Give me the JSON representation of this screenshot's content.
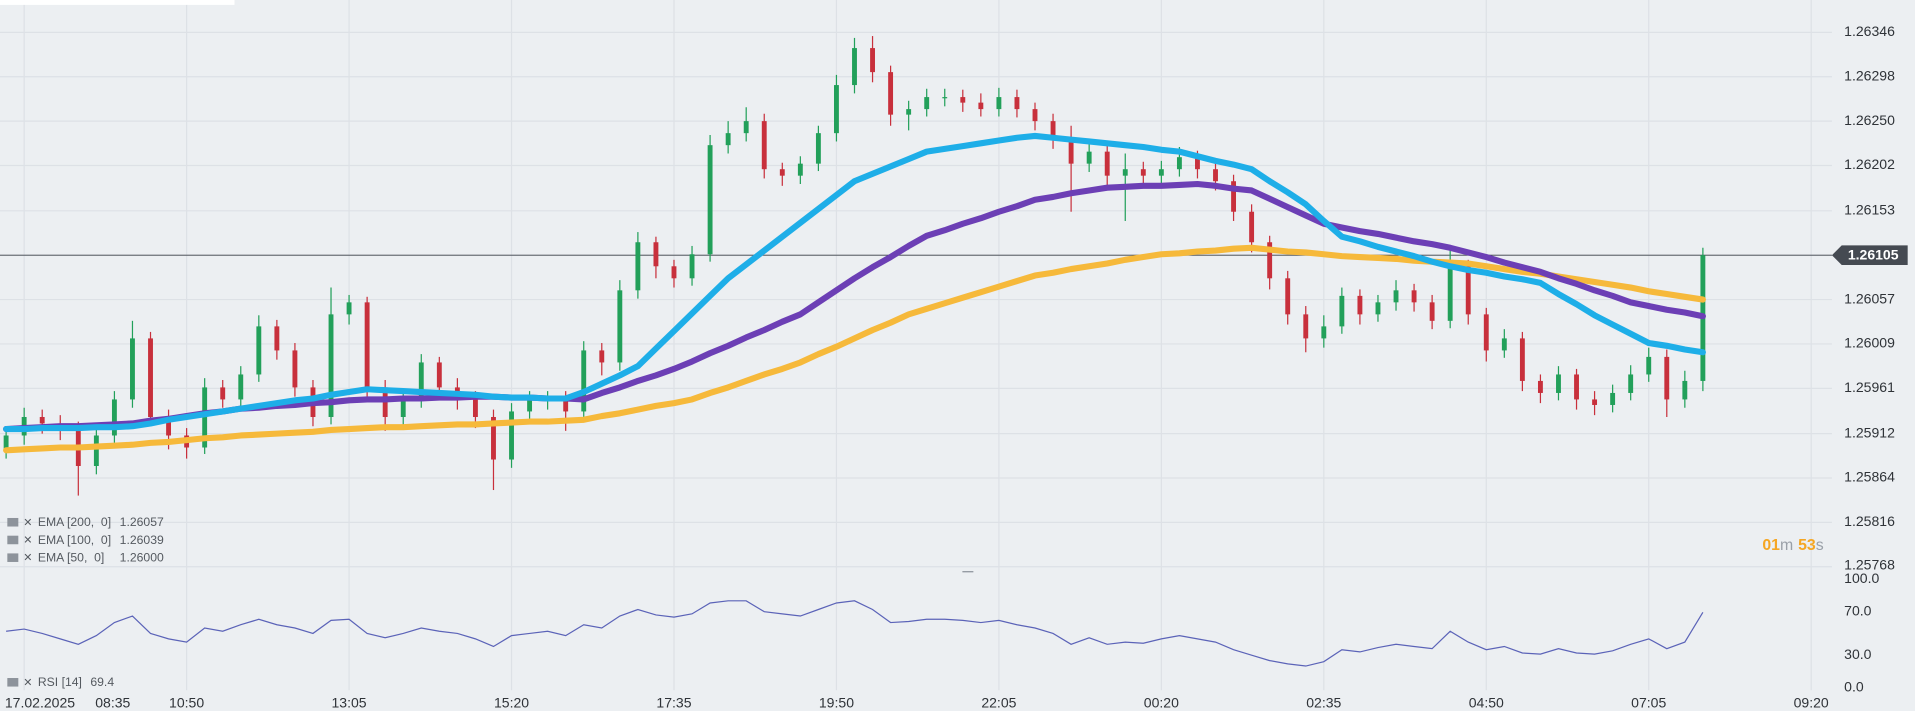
{
  "chart_data": {
    "type": "candlestick",
    "date": "17.02.2025",
    "categories": [
      null,
      "08:35",
      null,
      null,
      null,
      null,
      null,
      null,
      null,
      null,
      "10:50",
      null,
      null,
      null,
      null,
      null,
      null,
      null,
      null,
      "13:05",
      null,
      null,
      null,
      null,
      null,
      null,
      null,
      null,
      "15:20",
      null,
      null,
      null,
      null,
      null,
      null,
      null,
      null,
      "17:35",
      null,
      null,
      null,
      null,
      null,
      null,
      null,
      null,
      "19:50",
      null,
      null,
      null,
      null,
      null,
      null,
      null,
      null,
      "22:05",
      null,
      null,
      null,
      null,
      null,
      null,
      null,
      null,
      "00:20",
      null,
      null,
      null,
      null,
      null,
      null,
      null,
      null,
      "02:35",
      null,
      null,
      null,
      null,
      null,
      null,
      null,
      null,
      "04:50",
      null,
      null,
      null,
      null,
      null,
      null,
      null,
      null,
      "07:05",
      null,
      null,
      null,
      null,
      null,
      null,
      null,
      null,
      "09:20"
    ],
    "ohlc": [
      [
        1.25895,
        1.2592,
        1.25885,
        1.2591
      ],
      [
        1.2591,
        1.2594,
        1.259,
        1.2593
      ],
      [
        1.2593,
        1.25938,
        1.25912,
        1.25923
      ],
      [
        1.25923,
        1.25932,
        1.25905,
        1.25917
      ],
      [
        1.25917,
        1.25925,
        1.25845,
        1.25877
      ],
      [
        1.25877,
        1.25918,
        1.25868,
        1.2591
      ],
      [
        1.2591,
        1.25958,
        1.25902,
        1.25949
      ],
      [
        1.25949,
        1.26034,
        1.2594,
        1.26015
      ],
      [
        1.26015,
        1.26022,
        1.2592,
        1.2593
      ],
      [
        1.2593,
        1.25938,
        1.25895,
        1.2591
      ],
      [
        1.2591,
        1.25918,
        1.25885,
        1.25897
      ],
      [
        1.25897,
        1.25972,
        1.2589,
        1.25962
      ],
      [
        1.25962,
        1.2597,
        1.2594,
        1.25949
      ],
      [
        1.25949,
        1.25985,
        1.2594,
        1.25976
      ],
      [
        1.25976,
        1.2604,
        1.25968,
        1.26028
      ],
      [
        1.26028,
        1.26035,
        1.25992,
        1.26002
      ],
      [
        1.26002,
        1.2601,
        1.25952,
        1.25962
      ],
      [
        1.25962,
        1.2597,
        1.2592,
        1.2593
      ],
      [
        1.2593,
        1.2607,
        1.25922,
        1.26041
      ],
      [
        1.26041,
        1.26062,
        1.2603,
        1.26054
      ],
      [
        1.26054,
        1.2606,
        1.2595,
        1.25962
      ],
      [
        1.25962,
        1.2597,
        1.25915,
        1.2593
      ],
      [
        1.2593,
        1.2596,
        1.2592,
        1.25949
      ],
      [
        1.25949,
        1.25998,
        1.2594,
        1.25989
      ],
      [
        1.25989,
        1.25995,
        1.25952,
        1.25962
      ],
      [
        1.25962,
        1.25972,
        1.25938,
        1.25949
      ],
      [
        1.25949,
        1.25958,
        1.25918,
        1.2593
      ],
      [
        1.2593,
        1.25938,
        1.25851,
        1.25884
      ],
      [
        1.25884,
        1.25945,
        1.25875,
        1.25936
      ],
      [
        1.25936,
        1.25958,
        1.25928,
        1.25949
      ],
      [
        1.25949,
        1.25958,
        1.25938,
        1.25949
      ],
      [
        1.25949,
        1.25958,
        1.25915,
        1.25936
      ],
      [
        1.25936,
        1.26012,
        1.25928,
        1.26002
      ],
      [
        1.26002,
        1.2601,
        1.25975,
        1.25989
      ],
      [
        1.25989,
        1.26078,
        1.2598,
        1.26067
      ],
      [
        1.26067,
        1.2613,
        1.26058,
        1.26119
      ],
      [
        1.26119,
        1.26125,
        1.2608,
        1.26093
      ],
      [
        1.26093,
        1.261,
        1.2607,
        1.2608
      ],
      [
        1.2608,
        1.26115,
        1.26072,
        1.26106
      ],
      [
        1.26106,
        1.26235,
        1.26098,
        1.26224
      ],
      [
        1.26224,
        1.2625,
        1.26215,
        1.26237
      ],
      [
        1.26237,
        1.26265,
        1.26228,
        1.2625
      ],
      [
        1.2625,
        1.26258,
        1.26188,
        1.26198
      ],
      [
        1.26198,
        1.26205,
        1.2618,
        1.26191
      ],
      [
        1.26191,
        1.26212,
        1.26182,
        1.26204
      ],
      [
        1.26204,
        1.26245,
        1.26196,
        1.26237
      ],
      [
        1.26237,
        1.263,
        1.26228,
        1.26289
      ],
      [
        1.26289,
        1.2634,
        1.2628,
        1.26329
      ],
      [
        1.26329,
        1.26342,
        1.26292,
        1.26303
      ],
      [
        1.26303,
        1.2631,
        1.26245,
        1.26257
      ],
      [
        1.26257,
        1.26272,
        1.2624,
        1.26263
      ],
      [
        1.26263,
        1.26285,
        1.26255,
        1.26276
      ],
      [
        1.26276,
        1.26285,
        1.26266,
        1.26276
      ],
      [
        1.26276,
        1.26284,
        1.2626,
        1.2627
      ],
      [
        1.2627,
        1.2628,
        1.26255,
        1.26263
      ],
      [
        1.26263,
        1.26286,
        1.26255,
        1.26276
      ],
      [
        1.26276,
        1.26284,
        1.26254,
        1.26263
      ],
      [
        1.26263,
        1.2627,
        1.2624,
        1.2625
      ],
      [
        1.2625,
        1.26258,
        1.2622,
        1.26231
      ],
      [
        1.26231,
        1.26245,
        1.26152,
        1.26204
      ],
      [
        1.26204,
        1.26228,
        1.26195,
        1.26217
      ],
      [
        1.26217,
        1.26225,
        1.2618,
        1.26191
      ],
      [
        1.26191,
        1.26215,
        1.26142,
        1.26198
      ],
      [
        1.26198,
        1.26206,
        1.2618,
        1.26191
      ],
      [
        1.26191,
        1.26207,
        1.26183,
        1.26198
      ],
      [
        1.26198,
        1.26222,
        1.2619,
        1.26211
      ],
      [
        1.26211,
        1.26218,
        1.26188,
        1.26198
      ],
      [
        1.26198,
        1.26205,
        1.26175,
        1.26185
      ],
      [
        1.26185,
        1.26192,
        1.26142,
        1.26152
      ],
      [
        1.26152,
        1.2616,
        1.26108,
        1.26119
      ],
      [
        1.26119,
        1.26126,
        1.26068,
        1.2608
      ],
      [
        1.2608,
        1.26088,
        1.2603,
        1.26041
      ],
      [
        1.26041,
        1.2605,
        1.26,
        1.26015
      ],
      [
        1.26015,
        1.2604,
        1.26005,
        1.26028
      ],
      [
        1.26028,
        1.2607,
        1.2602,
        1.26061
      ],
      [
        1.26061,
        1.26068,
        1.2603,
        1.26041
      ],
      [
        1.26041,
        1.26062,
        1.26033,
        1.26054
      ],
      [
        1.26054,
        1.26078,
        1.26045,
        1.26067
      ],
      [
        1.26067,
        1.26074,
        1.26044,
        1.26054
      ],
      [
        1.26054,
        1.26062,
        1.26025,
        1.26034
      ],
      [
        1.26034,
        1.26113,
        1.26026,
        1.26093
      ],
      [
        1.26093,
        1.261,
        1.2603,
        1.26041
      ],
      [
        1.26041,
        1.26048,
        1.2599,
        1.26002
      ],
      [
        1.26002,
        1.26025,
        1.25994,
        1.26015
      ],
      [
        1.26015,
        1.26022,
        1.25958,
        1.25969
      ],
      [
        1.25969,
        1.25976,
        1.25945,
        1.25956
      ],
      [
        1.25956,
        1.25985,
        1.25948,
        1.25976
      ],
      [
        1.25976,
        1.25982,
        1.25938,
        1.25949
      ],
      [
        1.25949,
        1.25958,
        1.25932,
        1.25943
      ],
      [
        1.25943,
        1.25965,
        1.25935,
        1.25956
      ],
      [
        1.25956,
        1.25986,
        1.25948,
        1.25976
      ],
      [
        1.25976,
        1.26005,
        1.25968,
        1.25995
      ],
      [
        1.25995,
        1.26003,
        1.2593,
        1.25949
      ],
      [
        1.25949,
        1.2598,
        1.2594,
        1.25969
      ],
      [
        1.25969,
        1.26113,
        1.25958,
        1.26105
      ],
      null,
      null,
      null,
      null,
      null,
      null
    ],
    "up_color": "#22a05a",
    "down_color": "#c8303c",
    "series": [
      {
        "name": "EMA [200,  0]",
        "last_value": {
          "value": 1.26057,
          "label": "1.26057"
        },
        "color": "#f6b93b",
        "values": [
          1.25894,
          1.25895,
          1.25896,
          1.25897,
          1.25897,
          1.25898,
          1.25899,
          1.259,
          1.25902,
          1.25903,
          1.25905,
          1.25907,
          1.25908,
          1.2591,
          1.25911,
          1.25912,
          1.25913,
          1.25914,
          1.25916,
          1.25917,
          1.25918,
          1.25919,
          1.25919,
          1.2592,
          1.25921,
          1.25922,
          1.25922,
          1.25923,
          1.25924,
          1.25925,
          1.25925,
          1.25926,
          1.25927,
          1.25931,
          1.25934,
          1.25938,
          1.25942,
          1.25945,
          1.25949,
          1.25956,
          1.25962,
          1.25969,
          1.25976,
          1.25982,
          1.25989,
          1.25998,
          1.26006,
          1.26015,
          1.26024,
          1.26032,
          1.26041,
          1.26047,
          1.26053,
          1.26059,
          1.26065,
          1.26071,
          1.26077,
          1.26083,
          1.26086,
          1.2609,
          1.26093,
          1.26096,
          1.261,
          1.26103,
          1.26106,
          1.26107,
          1.26109,
          1.2611,
          1.26112,
          1.26113,
          1.26111,
          1.26109,
          1.26108,
          1.26106,
          1.26104,
          1.26103,
          1.26102,
          1.26101,
          1.26099,
          1.26098,
          1.26097,
          1.26096,
          1.26093,
          1.2609,
          1.26087,
          1.26085,
          1.26082,
          1.26079,
          1.26076,
          1.26073,
          1.2607,
          1.26066,
          1.26063,
          1.2606,
          1.26057,
          null,
          null,
          null,
          null,
          null,
          null
        ]
      },
      {
        "name": "EMA [100,  0]",
        "last_value": {
          "value": 1.26039,
          "label": "1.26039"
        },
        "color": "#6c3fb5",
        "values": [
          1.25917,
          1.25918,
          1.25919,
          1.2592,
          1.2592,
          1.25921,
          1.25922,
          1.25923,
          1.25926,
          1.25928,
          1.25931,
          1.25934,
          1.25936,
          1.25939,
          1.2594,
          1.25942,
          1.25943,
          1.25945,
          1.25946,
          1.25948,
          1.25949,
          1.25949,
          1.2595,
          1.2595,
          1.25951,
          1.25951,
          1.25952,
          1.25952,
          1.25951,
          1.25951,
          1.2595,
          1.2595,
          1.25949,
          1.25956,
          1.25962,
          1.25969,
          1.25975,
          1.25982,
          1.2599,
          1.25999,
          1.26007,
          1.26016,
          1.26024,
          1.26033,
          1.26041,
          1.26054,
          1.26067,
          1.2608,
          1.26092,
          1.26103,
          1.26115,
          1.26126,
          1.26132,
          1.26139,
          1.26145,
          1.26152,
          1.26158,
          1.26165,
          1.26168,
          1.26172,
          1.26175,
          1.26178,
          1.26179,
          1.2618,
          1.2618,
          1.26181,
          1.26182,
          1.2618,
          1.26177,
          1.26175,
          1.26166,
          1.26157,
          1.26148,
          1.26139,
          1.26135,
          1.26131,
          1.26128,
          1.26124,
          1.2612,
          1.26117,
          1.26113,
          1.26108,
          1.26103,
          1.26097,
          1.26092,
          1.26087,
          1.2608,
          1.26074,
          1.26067,
          1.26061,
          1.26054,
          1.2605,
          1.26046,
          1.26043,
          1.26039,
          null,
          null,
          null,
          null,
          null,
          null
        ]
      },
      {
        "name": "EMA [50,  0]",
        "last_value": {
          "value": 1.26,
          "label": "1.26000"
        },
        "color": "#1eaee8",
        "values": [
          1.25917,
          1.25917,
          1.25918,
          1.25918,
          1.25918,
          1.25919,
          1.25919,
          1.2592,
          1.25923,
          1.25927,
          1.2593,
          1.25933,
          1.25936,
          1.25939,
          1.25942,
          1.25945,
          1.25948,
          1.2595,
          1.25954,
          1.25957,
          1.2596,
          1.25959,
          1.25958,
          1.25957,
          1.25956,
          1.25955,
          1.25954,
          1.25952,
          1.25951,
          1.25951,
          1.2595,
          1.2595,
          1.25957,
          1.25966,
          1.25975,
          1.25985,
          1.26004,
          1.26023,
          1.26042,
          1.26061,
          1.2608,
          1.26095,
          1.2611,
          1.26125,
          1.2614,
          1.26155,
          1.2617,
          1.26185,
          1.26193,
          1.26201,
          1.26209,
          1.26217,
          1.2622,
          1.26223,
          1.26226,
          1.26229,
          1.26232,
          1.26234,
          1.26232,
          1.2623,
          1.26228,
          1.26226,
          1.26224,
          1.26222,
          1.26219,
          1.26217,
          1.26212,
          1.26207,
          1.26203,
          1.26198,
          1.26185,
          1.26173,
          1.2616,
          1.26142,
          1.26125,
          1.2612,
          1.26114,
          1.26109,
          1.26104,
          1.26098,
          1.26093,
          1.26089,
          1.26086,
          1.26082,
          1.26079,
          1.26075,
          1.26063,
          1.26052,
          1.2604,
          1.2603,
          1.2602,
          1.2601,
          1.26007,
          1.26003,
          1.26,
          null,
          null,
          null,
          null,
          null,
          null
        ]
      }
    ],
    "ylim": [
      1.2576,
      1.26381
    ],
    "yticks": [
      1.26346,
      1.26298,
      {
        "value": 1.2625,
        "label": "1.26250"
      },
      1.26202,
      1.26153,
      1.26105,
      1.26057,
      1.26009,
      1.25961,
      1.25912,
      1.25864,
      1.25816,
      1.25768
    ],
    "grid": true,
    "current_price": 1.26105,
    "countdown": {
      "minutes": "01",
      "minutes_unit": "m",
      "seconds": "53",
      "seconds_unit": "s"
    },
    "rsi": {
      "name": "RSI [14]",
      "value": 69.4,
      "color": "#5b63b8",
      "ylim": [
        0,
        100
      ],
      "yticks": [
        {
          "value": 100,
          "label": "100.0"
        },
        {
          "value": 70,
          "label": "70.0"
        },
        {
          "value": 30,
          "label": "30.0"
        },
        {
          "value": 0,
          "label": "0.0"
        }
      ],
      "values": [
        52,
        54,
        50,
        45,
        40,
        48,
        60,
        66,
        50,
        45,
        42,
        55,
        52,
        58,
        63,
        58,
        55,
        50,
        62,
        63,
        50,
        46,
        50,
        55,
        52,
        50,
        45,
        38,
        48,
        50,
        52,
        48,
        58,
        55,
        66,
        72,
        67,
        65,
        68,
        78,
        80,
        80,
        70,
        68,
        66,
        72,
        78,
        80,
        72,
        60,
        61,
        63,
        63,
        62,
        60,
        62,
        58,
        55,
        50,
        40,
        46,
        40,
        42,
        41,
        45,
        48,
        45,
        42,
        35,
        30,
        25,
        22,
        20,
        24,
        35,
        33,
        37,
        40,
        38,
        36,
        52,
        42,
        35,
        38,
        32,
        31,
        36,
        32,
        31,
        34,
        40,
        45,
        36,
        42,
        69.4,
        null,
        null,
        null,
        null,
        null,
        null
      ]
    }
  }
}
